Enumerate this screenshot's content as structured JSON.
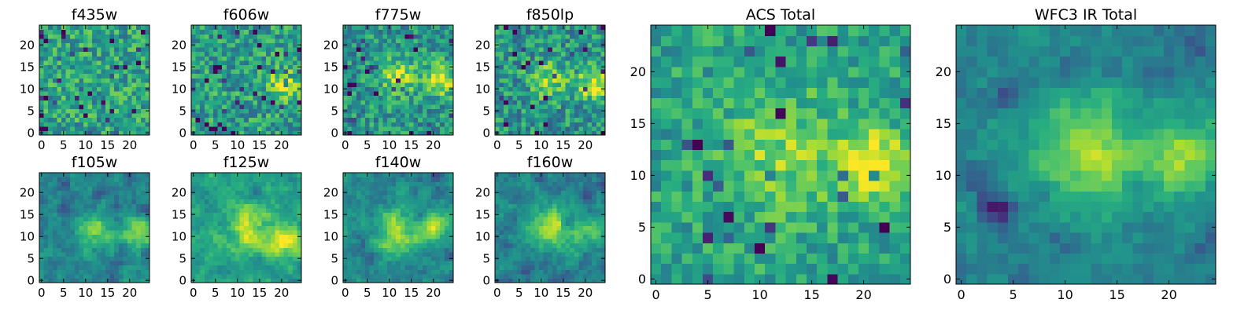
{
  "chart_data": [
    {
      "type": "heatmap",
      "title": "f435w",
      "seed": 11,
      "blobs": [],
      "base": 0.58,
      "noise": 0.4,
      "smooth": 0,
      "xticks": [
        0,
        5,
        10,
        15,
        20
      ],
      "yticks": [
        0,
        5,
        10,
        15,
        20
      ],
      "xlim": [
        0,
        24
      ],
      "ylim": [
        0,
        24
      ]
    },
    {
      "type": "heatmap",
      "title": "f606w",
      "seed": 23,
      "blobs": [
        {
          "x": 21,
          "y": 11,
          "r": 2.5,
          "a": 0.4
        }
      ],
      "base": 0.56,
      "noise": 0.4,
      "smooth": 0,
      "xticks": [
        0,
        5,
        10,
        15,
        20
      ],
      "yticks": [
        0,
        5,
        10,
        15,
        20
      ],
      "xlim": [
        0,
        24
      ],
      "ylim": [
        0,
        24
      ]
    },
    {
      "type": "heatmap",
      "title": "f775w",
      "seed": 37,
      "blobs": [
        {
          "x": 12,
          "y": 13,
          "r": 3,
          "a": 0.35
        },
        {
          "x": 22,
          "y": 12,
          "r": 2.5,
          "a": 0.45
        }
      ],
      "base": 0.52,
      "noise": 0.38,
      "smooth": 0,
      "xticks": [
        0,
        5,
        10,
        15,
        20
      ],
      "yticks": [
        0,
        5,
        10,
        15,
        20
      ],
      "xlim": [
        0,
        24
      ],
      "ylim": [
        0,
        24
      ]
    },
    {
      "type": "heatmap",
      "title": "f850lp",
      "seed": 41,
      "blobs": [
        {
          "x": 12,
          "y": 12,
          "r": 3,
          "a": 0.3
        },
        {
          "x": 22,
          "y": 11,
          "r": 2.5,
          "a": 0.45
        }
      ],
      "base": 0.52,
      "noise": 0.4,
      "smooth": 0,
      "xticks": [
        0,
        5,
        10,
        15,
        20
      ],
      "yticks": [
        0,
        5,
        10,
        15,
        20
      ],
      "xlim": [
        0,
        24
      ],
      "ylim": [
        0,
        24
      ]
    },
    {
      "type": "heatmap",
      "title": "ACS Total",
      "seed": 53,
      "blobs": [
        {
          "x": 12,
          "y": 12,
          "r": 4,
          "a": 0.25
        },
        {
          "x": 21,
          "y": 11,
          "r": 2.5,
          "a": 0.45
        }
      ],
      "base": 0.58,
      "noise": 0.3,
      "smooth": 0,
      "xticks": [
        0,
        5,
        10,
        15,
        20
      ],
      "yticks": [
        0,
        5,
        10,
        15,
        20
      ],
      "xlim": [
        0,
        24
      ],
      "ylim": [
        0,
        24
      ]
    },
    {
      "type": "heatmap",
      "title": "f105w",
      "seed": 61,
      "blobs": [
        {
          "x": 12,
          "y": 11,
          "r": 3,
          "a": 0.4
        },
        {
          "x": 22,
          "y": 11,
          "r": 2.5,
          "a": 0.4
        }
      ],
      "base": 0.45,
      "noise": 0.35,
      "smooth": 1,
      "xticks": [
        0,
        5,
        10,
        15,
        20
      ],
      "yticks": [
        0,
        5,
        10,
        15,
        20
      ],
      "xlim": [
        0,
        24
      ],
      "ylim": [
        0,
        24
      ]
    },
    {
      "type": "heatmap",
      "title": "f125w",
      "seed": 73,
      "blobs": [
        {
          "x": 12,
          "y": 12,
          "r": 4,
          "a": 0.35
        },
        {
          "x": 21,
          "y": 9,
          "r": 2.5,
          "a": 0.45
        }
      ],
      "base": 0.58,
      "noise": 0.3,
      "smooth": 1,
      "xticks": [
        0,
        5,
        10,
        15,
        20
      ],
      "yticks": [
        0,
        5,
        10,
        15,
        20
      ],
      "xlim": [
        0,
        24
      ],
      "ylim": [
        0,
        24
      ]
    },
    {
      "type": "heatmap",
      "title": "f140w",
      "seed": 89,
      "blobs": [
        {
          "x": 12,
          "y": 11,
          "r": 3.5,
          "a": 0.4
        },
        {
          "x": 21,
          "y": 12,
          "r": 2.5,
          "a": 0.4
        }
      ],
      "base": 0.48,
      "noise": 0.35,
      "smooth": 1,
      "xticks": [
        0,
        5,
        10,
        15,
        20
      ],
      "yticks": [
        0,
        5,
        10,
        15,
        20
      ],
      "xlim": [
        0,
        24
      ],
      "ylim": [
        0,
        24
      ]
    },
    {
      "type": "heatmap",
      "title": "f160w",
      "seed": 97,
      "blobs": [
        {
          "x": 12,
          "y": 12,
          "r": 3.5,
          "a": 0.45
        },
        {
          "x": 21,
          "y": 11,
          "r": 2.5,
          "a": 0.35
        }
      ],
      "base": 0.45,
      "noise": 0.35,
      "smooth": 1,
      "xticks": [
        0,
        5,
        10,
        15,
        20
      ],
      "yticks": [
        0,
        5,
        10,
        15,
        20
      ],
      "xlim": [
        0,
        24
      ],
      "ylim": [
        0,
        24
      ]
    },
    {
      "type": "heatmap",
      "title": "WFC3 IR Total",
      "seed": 101,
      "blobs": [
        {
          "x": 12,
          "y": 12,
          "r": 4,
          "a": 0.45
        },
        {
          "x": 22,
          "y": 12,
          "r": 3,
          "a": 0.35
        }
      ],
      "base": 0.45,
      "noise": 0.22,
      "smooth": 1,
      "xticks": [
        0,
        5,
        10,
        15,
        20
      ],
      "yticks": [
        0,
        5,
        10,
        15,
        20
      ],
      "xlim": [
        0,
        24
      ],
      "ylim": [
        0,
        24
      ]
    }
  ]
}
